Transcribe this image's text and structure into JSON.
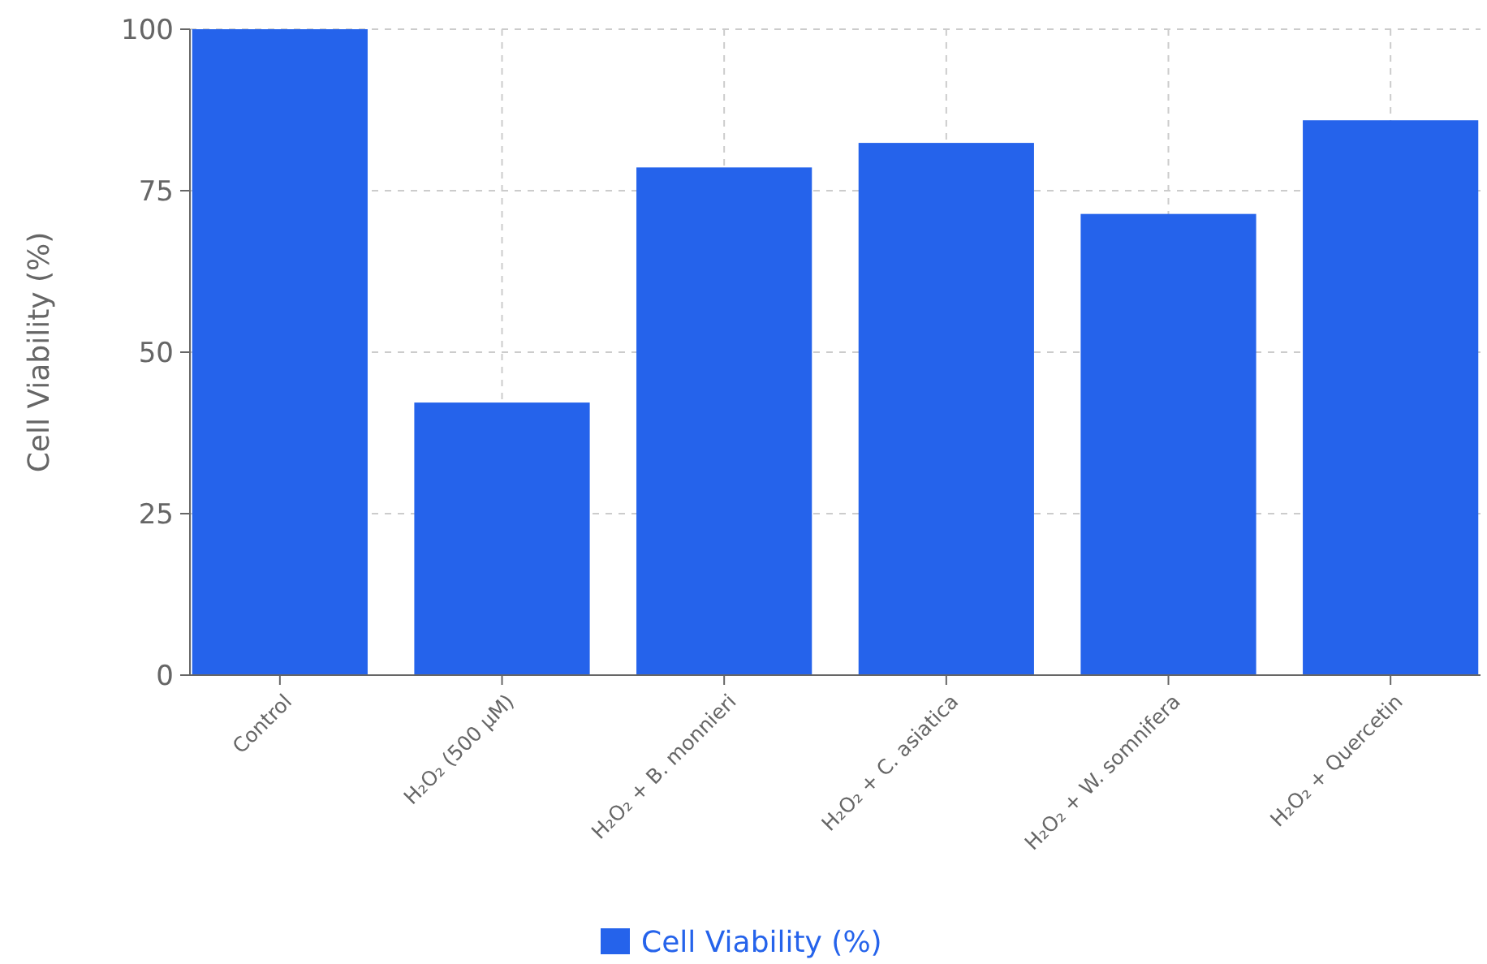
{
  "chart_data": {
    "type": "bar",
    "ylabel": "Cell Viability (%)",
    "categories": [
      "Control",
      "H₂O₂ (500 μM)",
      "H₂O₂ + B. monnieri",
      "H₂O₂ + C. asiatica",
      "H₂O₂ + W. somnifera",
      "H₂O₂ + Quercetin"
    ],
    "series": [
      {
        "name": "Cell Viability (%)",
        "color": "#2563eb",
        "values": [
          100,
          42.2,
          78.6,
          82.4,
          71.4,
          85.9
        ]
      }
    ],
    "ylim": [
      0,
      100
    ],
    "yticks": [
      0,
      25,
      50,
      75,
      100
    ],
    "grid": true,
    "legend": "bottom"
  }
}
